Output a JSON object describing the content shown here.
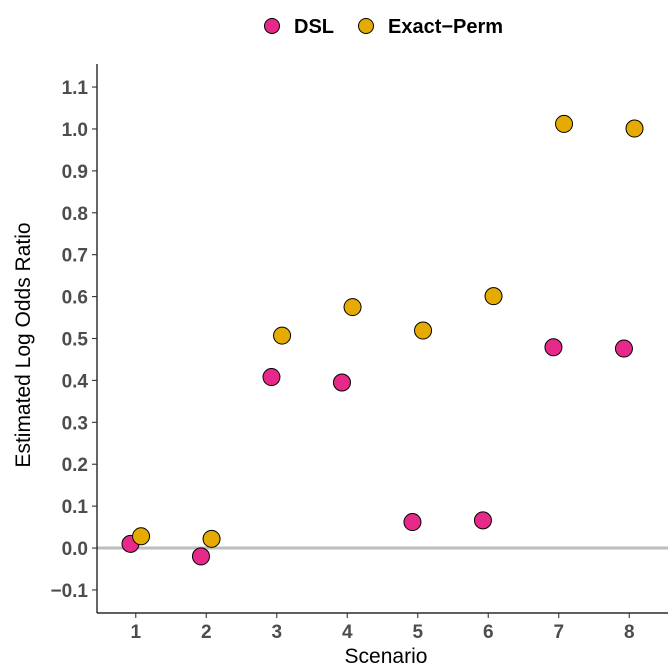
{
  "chart_data": {
    "type": "scatter",
    "title": "",
    "xlabel": "Scenario",
    "ylabel": "Estimated Log Odds Ratio",
    "x_ticks": [
      "1",
      "2",
      "3",
      "4",
      "5",
      "6",
      "7",
      "8"
    ],
    "y_ticks": [
      "−0.1",
      "0.0",
      "0.1",
      "0.2",
      "0.3",
      "0.4",
      "0.5",
      "0.6",
      "0.7",
      "0.8",
      "0.9",
      "1.0",
      "1.1"
    ],
    "xlim": [
      0.45,
      8.55
    ],
    "ylim": [
      -0.155,
      1.155
    ],
    "reference_line_y": 0,
    "reference_line_color": "#bebebe",
    "legend_position": "top",
    "grid": false,
    "series": [
      {
        "name": "DSL",
        "color": "#e7298a",
        "points": [
          {
            "x": 1,
            "y": 0.01
          },
          {
            "x": 2,
            "y": -0.02
          },
          {
            "x": 3,
            "y": 0.408
          },
          {
            "x": 4,
            "y": 0.395
          },
          {
            "x": 5,
            "y": 0.062
          },
          {
            "x": 6,
            "y": 0.066
          },
          {
            "x": 7,
            "y": 0.479
          },
          {
            "x": 8,
            "y": 0.476
          }
        ]
      },
      {
        "name": "Exact−Perm",
        "color": "#e6ab02",
        "points": [
          {
            "x": 1,
            "y": 0.028
          },
          {
            "x": 2,
            "y": 0.022
          },
          {
            "x": 3,
            "y": 0.507
          },
          {
            "x": 4,
            "y": 0.575
          },
          {
            "x": 5,
            "y": 0.519
          },
          {
            "x": 6,
            "y": 0.601
          },
          {
            "x": 7,
            "y": 1.012
          },
          {
            "x": 8,
            "y": 1.001
          }
        ]
      }
    ]
  }
}
